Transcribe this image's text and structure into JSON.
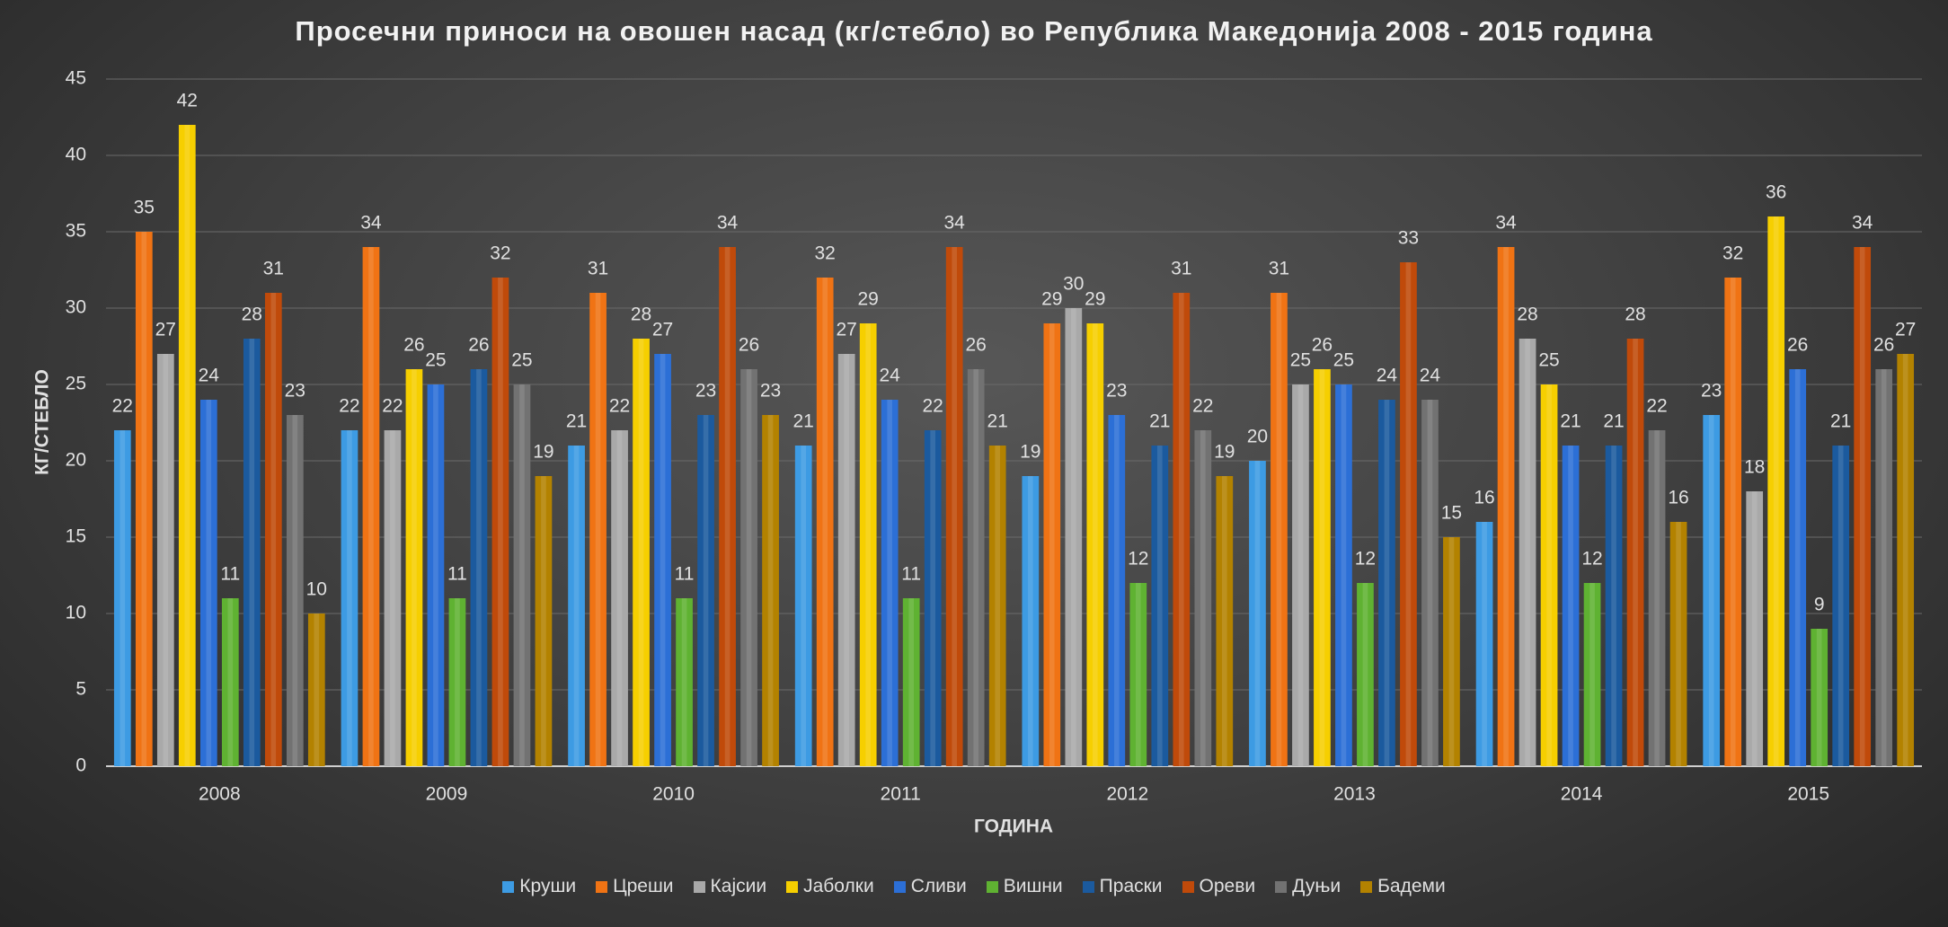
{
  "chart_data": {
    "type": "bar",
    "title": "Просечни приноси на овошен насад (кг/стебло) во Република Македонија 2008 - 2015 година",
    "x_label": "ГОДИНА",
    "y_label": "КГ/СТЕБЛО",
    "categories": [
      "2008",
      "2009",
      "2010",
      "2011",
      "2012",
      "2013",
      "2014",
      "2015"
    ],
    "ylim": [
      0,
      45
    ],
    "yticks": [
      0,
      5,
      10,
      15,
      20,
      25,
      30,
      35,
      40,
      45
    ],
    "grid": true,
    "legend": "bottom",
    "series": [
      {
        "name": "Круши",
        "color": "#3d9be3",
        "values": [
          22,
          22,
          21,
          21,
          19,
          20,
          16,
          23
        ]
      },
      {
        "name": "Цреши",
        "color": "#f07314",
        "values": [
          35,
          34,
          31,
          32,
          29,
          31,
          34,
          32
        ]
      },
      {
        "name": "Кајсии",
        "color": "#a9a9a9",
        "values": [
          27,
          22,
          22,
          27,
          30,
          25,
          28,
          18
        ]
      },
      {
        "name": "Јаболки",
        "color": "#f6cf00",
        "values": [
          42,
          26,
          28,
          29,
          29,
          26,
          25,
          36
        ]
      },
      {
        "name": "Сливи",
        "color": "#2c6fd6",
        "values": [
          24,
          25,
          27,
          24,
          23,
          25,
          21,
          26
        ]
      },
      {
        "name": "Вишни",
        "color": "#5fb232",
        "values": [
          11,
          11,
          11,
          11,
          12,
          12,
          12,
          9
        ]
      },
      {
        "name": "Праски",
        "color": "#1b5a9e",
        "values": [
          28,
          26,
          23,
          22,
          21,
          24,
          21,
          21
        ]
      },
      {
        "name": "Ореви",
        "color": "#c04a0a",
        "values": [
          31,
          32,
          34,
          34,
          31,
          33,
          28,
          34
        ]
      },
      {
        "name": "Дуњи",
        "color": "#727272",
        "values": [
          23,
          25,
          26,
          26,
          22,
          24,
          22,
          26
        ]
      },
      {
        "name": "Бадеми",
        "color": "#b38200",
        "values": [
          10,
          19,
          23,
          21,
          19,
          15,
          16,
          27
        ]
      }
    ]
  }
}
